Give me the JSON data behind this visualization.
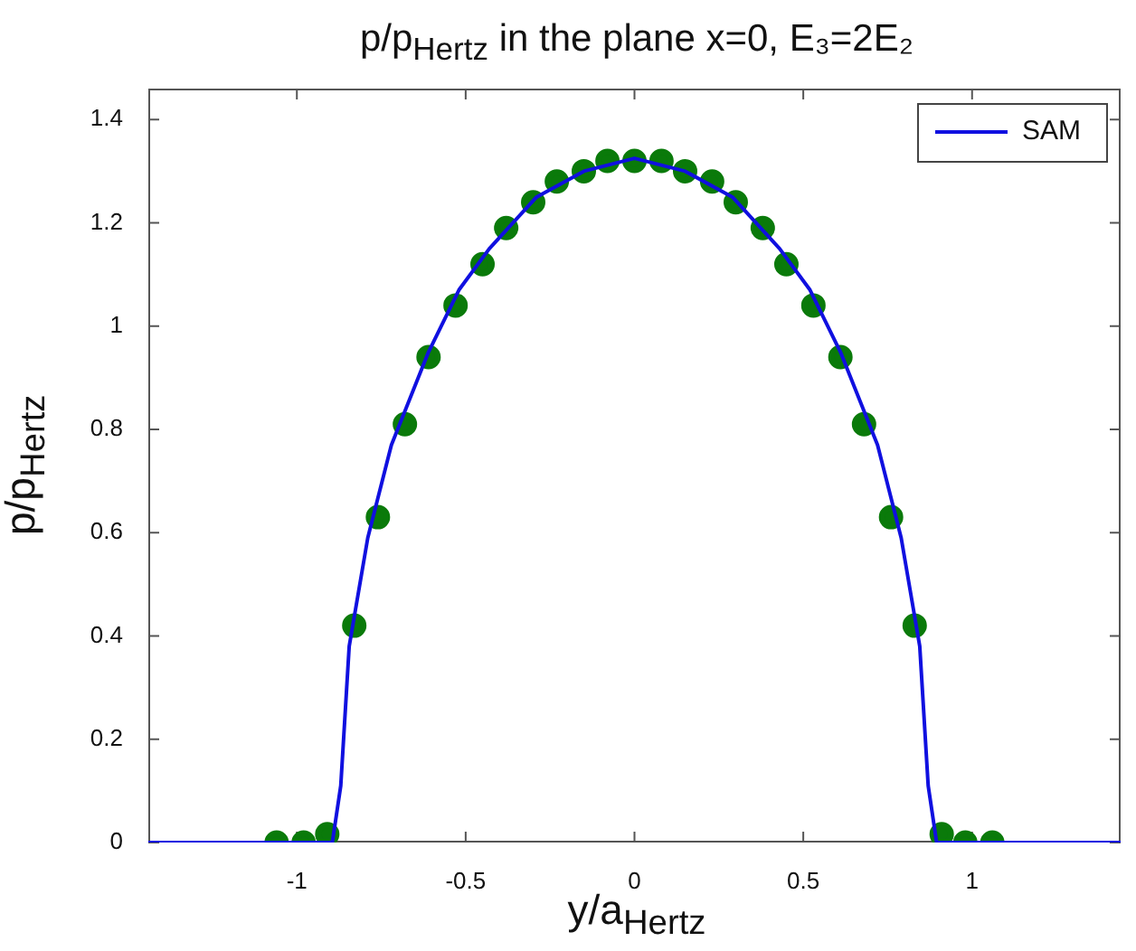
{
  "chart_data": {
    "type": "line",
    "title": "p/p$_{Hertz}$ in the plane x=0, E₃=2E₂",
    "xlabel": "y/a$_{Hertz}$",
    "ylabel": "p/p$_{Hertz}$",
    "xlim": [
      -1.44,
      1.44
    ],
    "ylim": [
      0,
      1.46
    ],
    "xticks": [
      -1,
      -0.5,
      0,
      0.5,
      1
    ],
    "yticks": [
      0,
      0.2,
      0.4,
      0.6,
      0.8,
      1,
      1.2,
      1.4
    ],
    "grid": false,
    "legend": "top right",
    "series": [
      {
        "name": "SAM",
        "color": "#1010e0",
        "marker": "none",
        "line_style": "solid",
        "x": [
          -1.44,
          -0.895,
          -0.87,
          -0.845,
          -0.79,
          -0.72,
          -0.61,
          -0.52,
          -0.43,
          -0.29,
          -0.15,
          0,
          0.15,
          0.29,
          0.43,
          0.52,
          0.61,
          0.72,
          0.79,
          0.845,
          0.87,
          0.895,
          1.44
        ],
        "values": [
          0,
          0,
          0.11,
          0.38,
          0.59,
          0.77,
          0.95,
          1.07,
          1.15,
          1.25,
          1.3,
          1.325,
          1.3,
          1.25,
          1.15,
          1.07,
          0.95,
          0.77,
          0.59,
          0.38,
          0.11,
          0,
          0
        ]
      },
      {
        "type": "scatter",
        "color": "#0a7a0a",
        "marker": "circle",
        "x": [
          -1.06,
          -0.98,
          -0.91,
          -0.83,
          -0.76,
          -0.68,
          -0.61,
          -0.53,
          -0.45,
          -0.38,
          -0.3,
          -0.23,
          -0.15,
          -0.08,
          0,
          0.08,
          0.15,
          0.23,
          0.3,
          0.38,
          0.45,
          0.53,
          0.61,
          0.68,
          0.76,
          0.83,
          0.91,
          0.98,
          1.06
        ],
        "values": [
          0,
          0,
          0.016,
          0.42,
          0.63,
          0.81,
          0.94,
          1.04,
          1.12,
          1.19,
          1.24,
          1.28,
          1.3,
          1.32,
          1.32,
          1.32,
          1.3,
          1.28,
          1.24,
          1.19,
          1.12,
          1.04,
          0.94,
          0.81,
          0.63,
          0.42,
          0.016,
          0,
          0
        ]
      }
    ]
  }
}
